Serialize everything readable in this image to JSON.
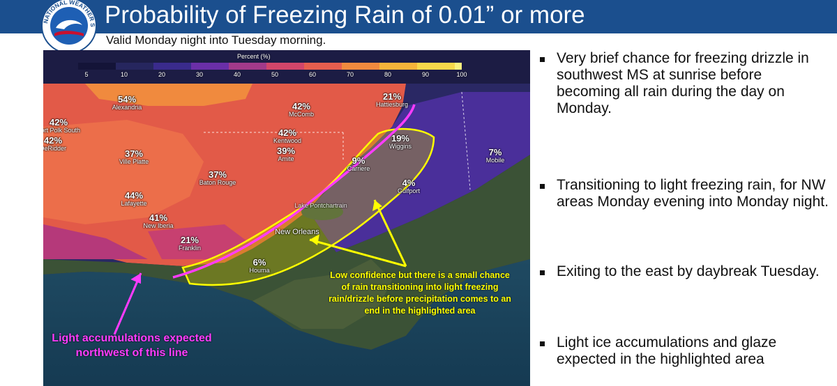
{
  "header": {
    "title": "Probability of Freezing Rain of 0.01” or more",
    "subtitle": "Valid Monday night into Tuesday morning.",
    "logo_text": "NATIONAL WEATHER SERVICE",
    "bar_color": "#1b4f8e"
  },
  "map": {
    "legend": {
      "title": "Percent (%)",
      "ticks": [
        "5",
        "10",
        "20",
        "30",
        "40",
        "50",
        "60",
        "70",
        "80",
        "90",
        "100"
      ],
      "colors": [
        "#141438",
        "#26265e",
        "#3a2b8c",
        "#6a2fa8",
        "#a23a8a",
        "#d2466a",
        "#e65e4e",
        "#f08a3e",
        "#f6b43a",
        "#f8d84a",
        "#fbf07e"
      ]
    },
    "cities": [
      {
        "pct": "54%",
        "name": "Alexandria"
      },
      {
        "pct": "42%",
        "name": "Fort Polk South"
      },
      {
        "pct": "42%",
        "name": "DeRidder"
      },
      {
        "pct": "42%",
        "name": "McComb"
      },
      {
        "pct": "21%",
        "name": "Hattiesburg"
      },
      {
        "pct": "42%",
        "name": "Kentwood"
      },
      {
        "pct": "39%",
        "name": "Amite"
      },
      {
        "pct": "37%",
        "name": "Ville Platte"
      },
      {
        "pct": "37%",
        "name": "Baton Rouge"
      },
      {
        "pct": "44%",
        "name": "Lafayette"
      },
      {
        "pct": "41%",
        "name": "New Iberia"
      },
      {
        "pct": "21%",
        "name": "Franklin"
      },
      {
        "pct": "19%",
        "name": "Wiggins"
      },
      {
        "pct": "9%",
        "name": "Carriere"
      },
      {
        "pct": "4%",
        "name": "Gulfport"
      },
      {
        "pct": "7%",
        "name": "Mobile"
      },
      {
        "pct": "6%",
        "name": "Houma"
      },
      {
        "pct": "",
        "name": "New Orleans"
      },
      {
        "pct": "",
        "name": "Lake Pontchartrain"
      }
    ],
    "annotation_yellow": "Low confidence but there is a small chance of rain transitioning into light freezing rain/drizzle before precipitation comes to an end in the highlighted area",
    "annotation_magenta": "Light accumulations expected northwest of this line",
    "highlight_color": "#ffff00",
    "line_color": "#ff3cff"
  },
  "bullets": [
    "Very brief chance for freezing drizzle in southwest MS at sunrise before becoming all rain during the day on Monday.",
    "Transitioning to light freezing rain, for NW areas Monday evening into Monday night.",
    "Exiting to the east by daybreak Tuesday.",
    "Light ice accumulations and glaze expected in the highlighted area"
  ]
}
